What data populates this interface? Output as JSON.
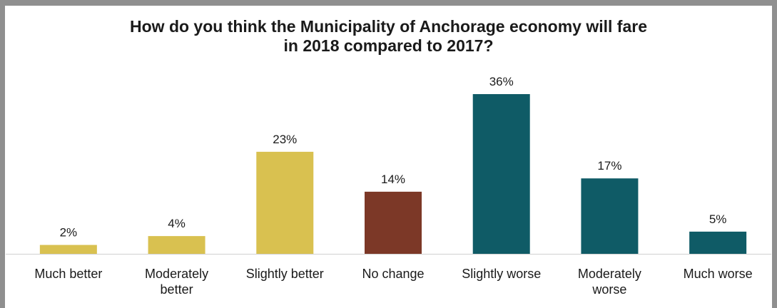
{
  "chart_data": {
    "type": "bar",
    "title_lines": [
      "How do you think the Municipality of Anchorage economy will fare",
      "in 2018 compared to 2017?"
    ],
    "categories": [
      [
        "Much better"
      ],
      [
        "Moderately",
        "better"
      ],
      [
        "Slightly better"
      ],
      [
        "No change"
      ],
      [
        "Slightly worse"
      ],
      [
        "Moderately",
        "worse"
      ],
      [
        "Much worse"
      ]
    ],
    "values": [
      2,
      4,
      23,
      14,
      36,
      17,
      5
    ],
    "data_labels": [
      "2%",
      "4%",
      "23%",
      "14%",
      "36%",
      "17%",
      "5%"
    ],
    "bar_colors": [
      "#d9c150",
      "#d9c150",
      "#d9c150",
      "#7c3827",
      "#0f5b66",
      "#0f5b66",
      "#0f5b66"
    ],
    "ylim": [
      0,
      36
    ],
    "grid": false,
    "legend": "none",
    "xlabel": "",
    "ylabel": ""
  }
}
